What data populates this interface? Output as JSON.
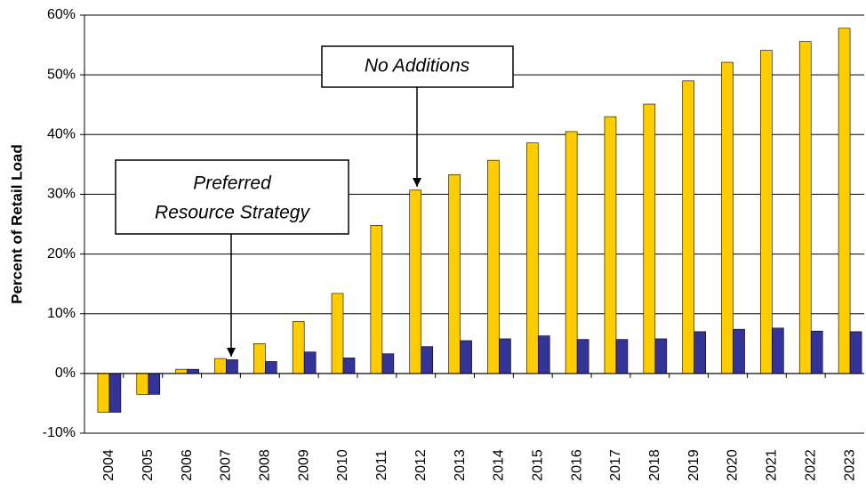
{
  "chart_data": {
    "type": "bar",
    "y_label": "Percent of Retail Load",
    "categories": [
      "2004",
      "2005",
      "2006",
      "2007",
      "2008",
      "2009",
      "2010",
      "2011",
      "2012",
      "2013",
      "2014",
      "2015",
      "2016",
      "2017",
      "2018",
      "2019",
      "2020",
      "2021",
      "2022",
      "2023"
    ],
    "series": [
      {
        "color": "#FFCC00",
        "values": [
          -6.5,
          -3.5,
          0.7,
          2.5,
          5.0,
          8.7,
          13.4,
          24.8,
          30.7,
          33.3,
          35.7,
          38.6,
          40.5,
          43.0,
          45.1,
          49.0,
          52.1,
          54.1,
          55.6,
          57.8
        ]
      },
      {
        "color": "#333399",
        "values": [
          -6.5,
          -3.5,
          0.7,
          2.3,
          2.0,
          3.6,
          2.6,
          3.3,
          4.5,
          5.5,
          5.8,
          6.3,
          5.7,
          5.7,
          5.8,
          7.0,
          7.4,
          7.6,
          7.1,
          7.0
        ]
      }
    ],
    "ylim": [
      -10,
      60
    ],
    "yticks": [
      {
        "value": -10,
        "label": "-10%"
      },
      {
        "value": 0,
        "label": "0%"
      },
      {
        "value": 10,
        "label": "10%"
      },
      {
        "value": 20,
        "label": "20%"
      },
      {
        "value": 30,
        "label": "30%"
      },
      {
        "value": 40,
        "label": "40%"
      },
      {
        "value": 50,
        "label": "50%"
      },
      {
        "value": 60,
        "label": "60%"
      }
    ],
    "grid": true,
    "annotations": [
      {
        "lines": [
          "No Additions"
        ]
      },
      {
        "lines": [
          "Preferred",
          "Resource Strategy"
        ]
      }
    ]
  }
}
